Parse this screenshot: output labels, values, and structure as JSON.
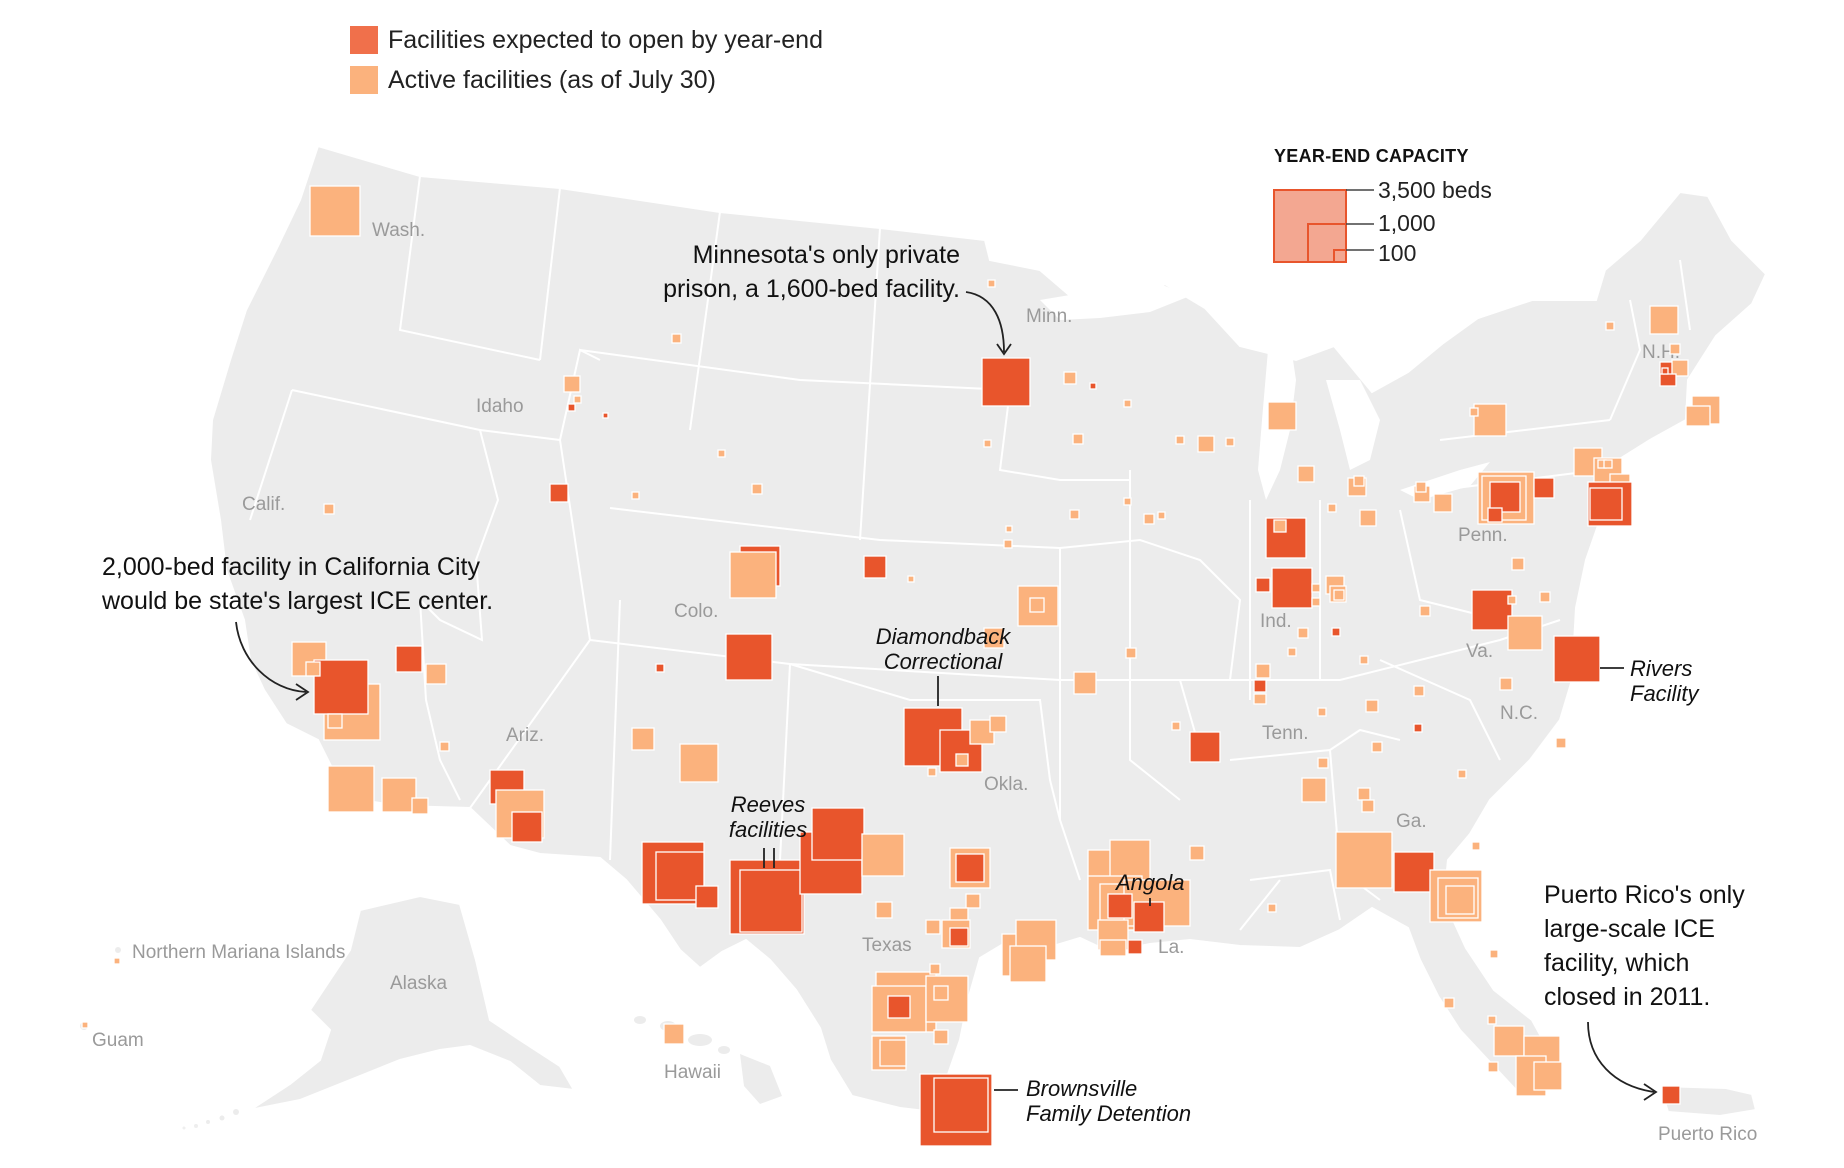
{
  "colors": {
    "year_end": "#f0704b",
    "year_end_dark": "#e8552c",
    "active": "#fbb27d",
    "land": "#ececec",
    "border": "#ffffff",
    "label": "#9a9a9a",
    "capacity_key_fill": "#f3a791",
    "capacity_key_stroke": "#e8552c"
  },
  "legend": {
    "year_end_label": "Facilities expected to open by year-end",
    "active_label": "Active facilities (as of July 30)"
  },
  "capacity_key": {
    "title": "YEAR-END CAPACITY",
    "labels": [
      "3,500 beds",
      "1,000",
      "100"
    ],
    "beds": [
      3500,
      1000,
      100
    ]
  },
  "state_labels": [
    "Wash.",
    "Idaho",
    "Calif.",
    "Ariz.",
    "Colo.",
    "Minn.",
    "Okla.",
    "Texas",
    "La.",
    "Ind.",
    "Tenn.",
    "Ga.",
    "Penn.",
    "Va.",
    "N.C.",
    "N.H."
  ],
  "inset_labels": [
    "Alaska",
    "Hawaii",
    "Northern Mariana Islands",
    "Guam",
    "Puerto Rico"
  ],
  "annotations": {
    "minnesota": [
      "Minnesota's only private",
      "prison, a 1,600-bed facility."
    ],
    "california": [
      "2,000-bed facility in California City",
      "would be state's largest ICE center."
    ],
    "puerto_rico": [
      "Puerto Rico's only",
      "large-scale ICE",
      "facility, which",
      "closed in 2011."
    ],
    "diamondback": [
      "Diamondback",
      "Correctional"
    ],
    "reeves": [
      "Reeves",
      "facilities"
    ],
    "angola": "Angola",
    "rivers": [
      "Rivers",
      "Facility"
    ],
    "brownsville": [
      "Brownsville",
      "Family Detention"
    ]
  },
  "facility_types": [
    "year_end",
    "active"
  ]
}
